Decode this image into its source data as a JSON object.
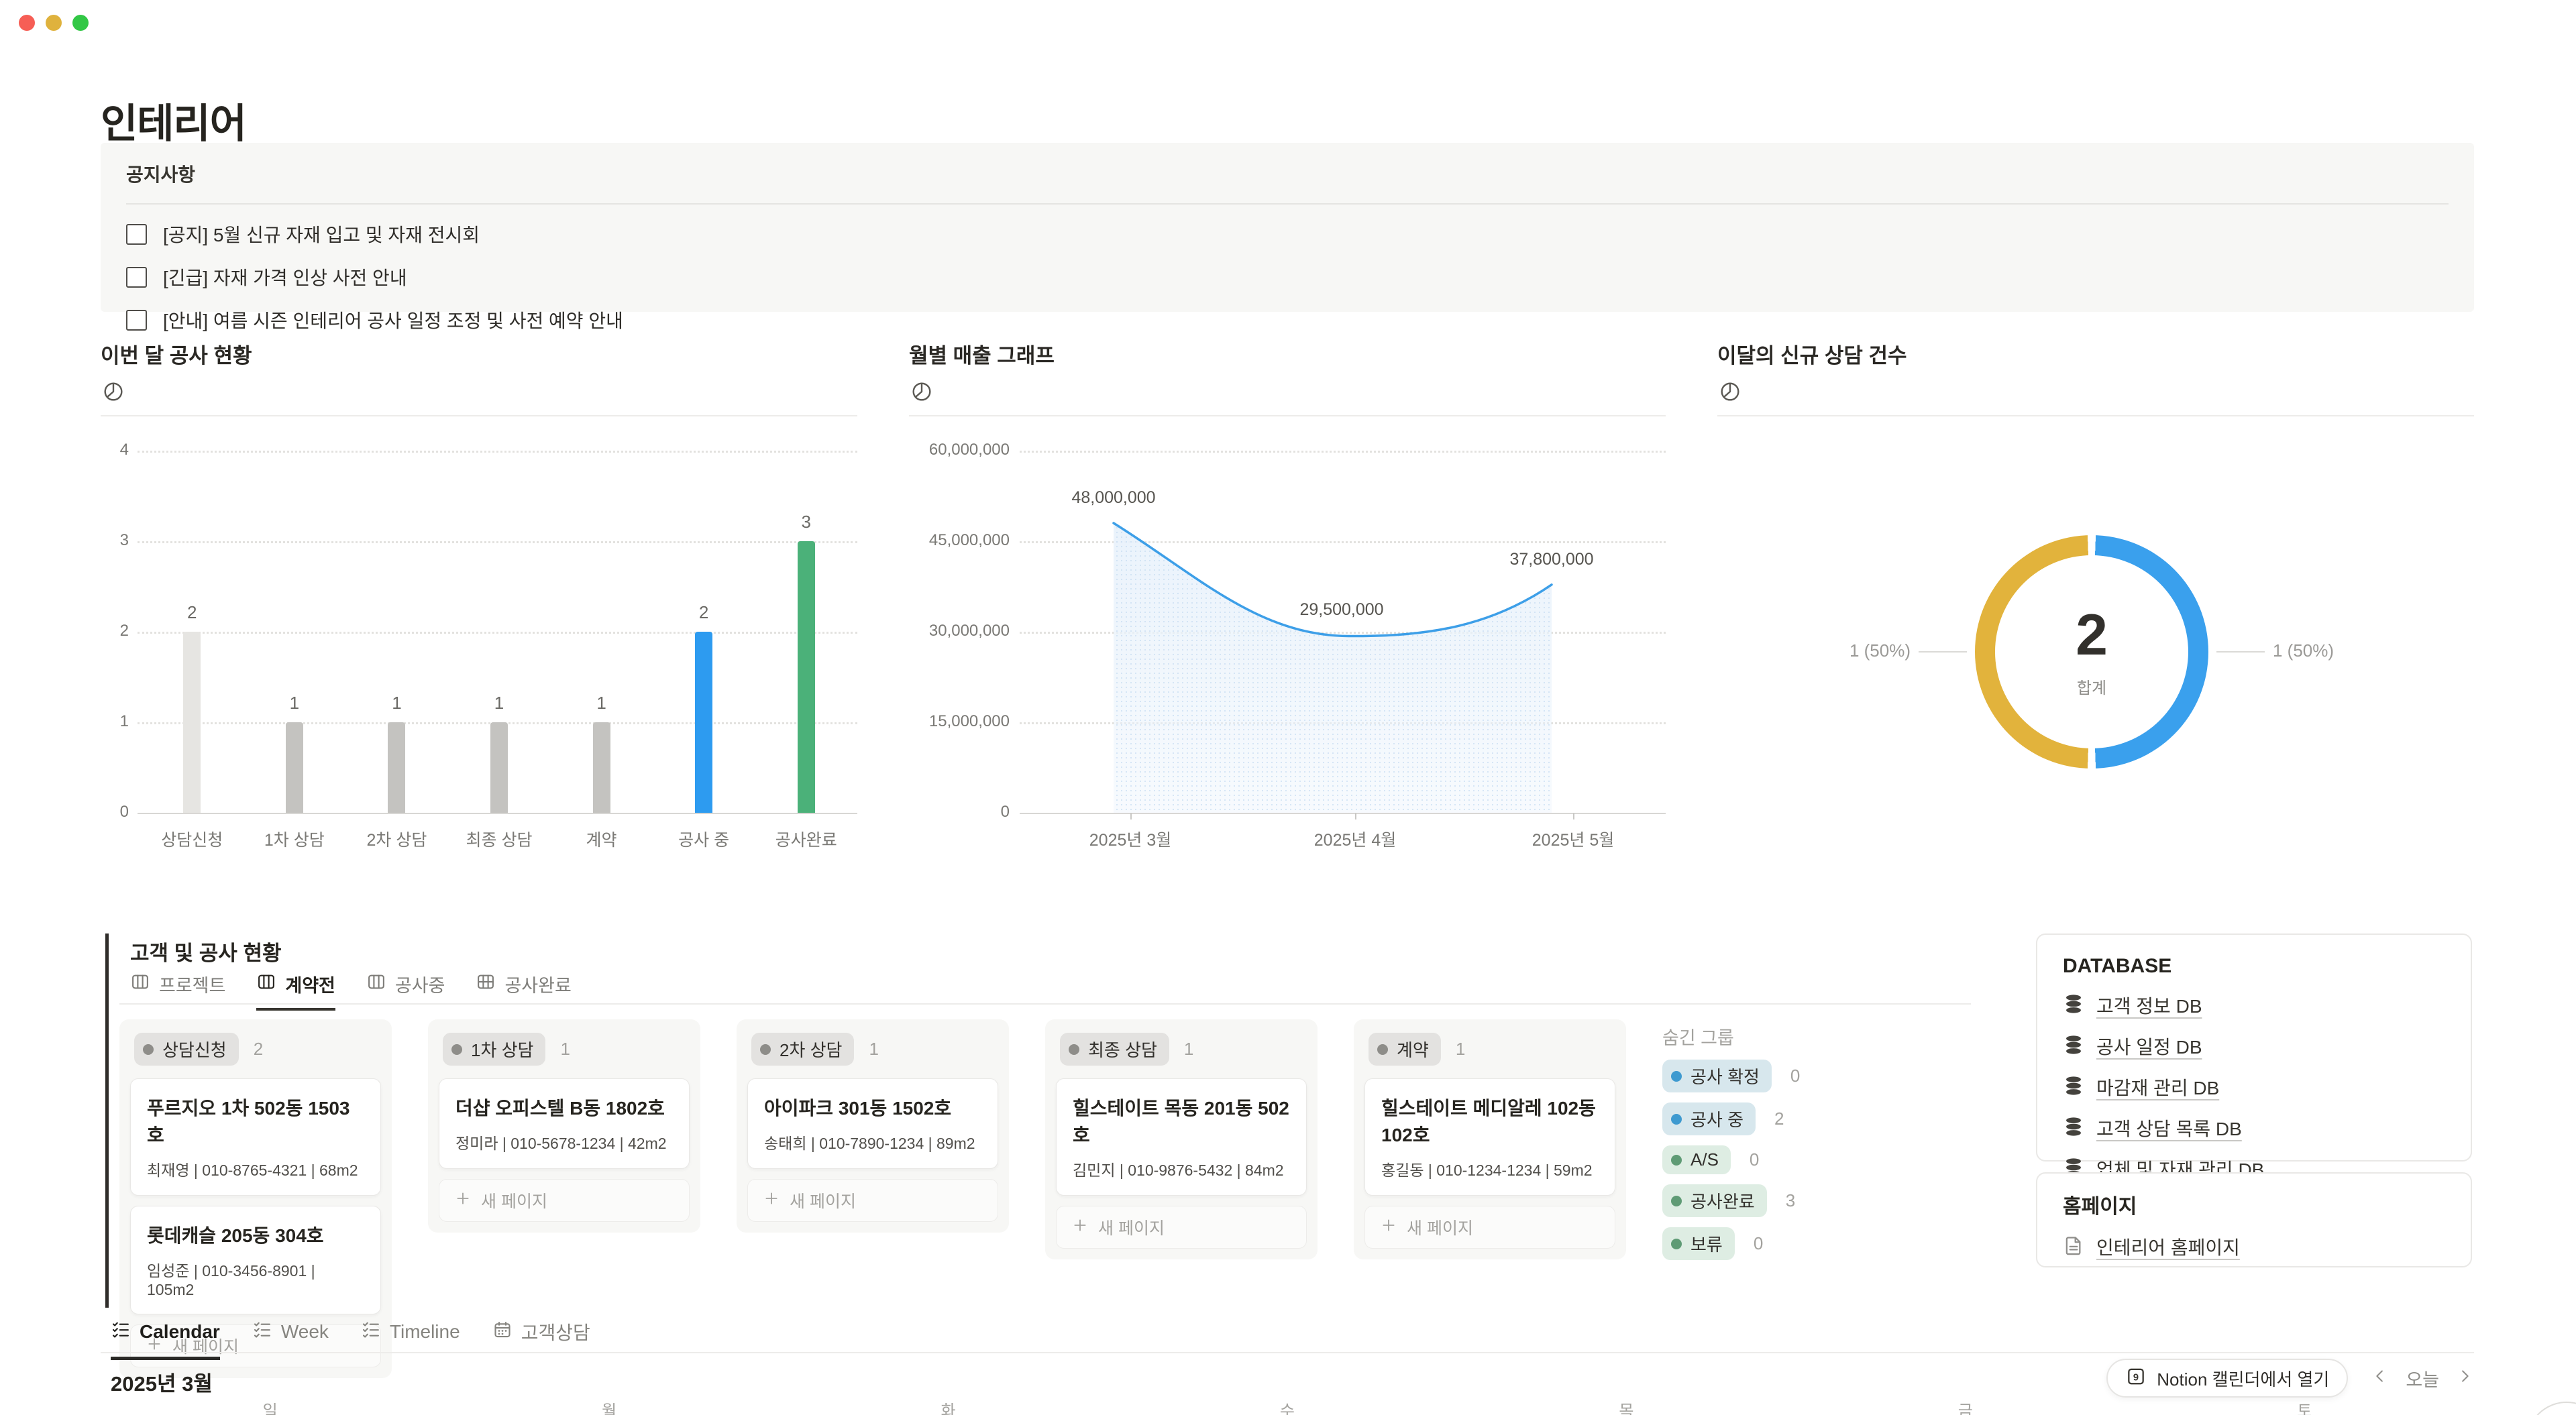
{
  "window": {
    "title": "인테리어",
    "traffic_lights": [
      "close",
      "minimize",
      "zoom"
    ],
    "traffic_colors": {
      "close": "#F65E55",
      "minimize": "#DFB23D",
      "zoom": "#32C745"
    }
  },
  "notice": {
    "title": "공지사항",
    "items": [
      {
        "checked": false,
        "label": "[공지] 5월 신규 자재 입고 및 자재 전시회"
      },
      {
        "checked": false,
        "label": "[긴급] 자재 가격 인상 사전 안내"
      },
      {
        "checked": false,
        "label": "[안내] 여름 시즌 인테리어 공사 일정 조정 및 사전 예약 안내"
      }
    ]
  },
  "chart_data": [
    {
      "type": "bar",
      "title": "이번 달 공사 현황",
      "categories": [
        "상담신청",
        "1차 상담",
        "2차 상담",
        "최종 상담",
        "계약",
        "공사 중",
        "공사완료"
      ],
      "values": [
        2,
        1,
        1,
        1,
        1,
        2,
        3
      ],
      "bar_colors": [
        "#E6E5E2",
        "#C4C3C0",
        "#C4C3C0",
        "#C4C3C0",
        "#C4C3C0",
        "#2D9BF0",
        "#4BB179"
      ],
      "ylim": [
        0,
        4
      ],
      "yticks": [
        0,
        1,
        2,
        3,
        4
      ],
      "grid": "dotted-horizontal",
      "legend": "none"
    },
    {
      "type": "line",
      "title": "월별 매출 그래프",
      "x": [
        "2025년 3월",
        "2025년 4월",
        "2025년 5월"
      ],
      "values": [
        48000000,
        29500000,
        37800000
      ],
      "value_labels": [
        "48,000,000",
        "29,500,000",
        "37,800,000"
      ],
      "ylim": [
        0,
        60000000
      ],
      "yticks": [
        "0",
        "15,000,000",
        "30,000,000",
        "45,000,000",
        "60,000,000"
      ],
      "ytick_values": [
        0,
        15000000,
        30000000,
        45000000,
        60000000
      ],
      "line_color": "#3D9FE8",
      "area_fill": "#E9F2FB",
      "area_dot_color": "#C3DAF1",
      "grid": "dotted-horizontal",
      "legend": "none"
    },
    {
      "type": "donut",
      "title": "이달의 신규 상담 건수",
      "center_value": "2",
      "center_label": "합계",
      "slices": [
        {
          "label": "1 (50%)",
          "value": 1,
          "percent": 50,
          "color": "#3AA0ED",
          "side": "right"
        },
        {
          "label": "1 (50%)",
          "value": 1,
          "percent": 50,
          "color": "#E2B33C",
          "side": "left"
        }
      ],
      "legend": "callout-lines"
    }
  ],
  "kanban": {
    "section_title": "고객 및 공사 현황",
    "tabs": [
      {
        "label": "프로젝트",
        "icon": "board-icon",
        "active": false
      },
      {
        "label": "계약전",
        "icon": "board-icon",
        "active": true
      },
      {
        "label": "공사중",
        "icon": "board-icon",
        "active": false
      },
      {
        "label": "공사완료",
        "icon": "table-icon",
        "active": false
      }
    ],
    "new_page_label": "새 페이지",
    "columns": [
      {
        "name": "상담신청",
        "count": "2",
        "cards": [
          {
            "title": "푸르지오 1차 502동 1503호",
            "meta": "최재영 | 010-8765-4321 | 68m2"
          },
          {
            "title": "롯데캐슬 205동 304호",
            "meta": "임성준 | 010-3456-8901 | 105m2"
          }
        ]
      },
      {
        "name": "1차 상담",
        "count": "1",
        "cards": [
          {
            "title": "더샵 오피스텔 B동 1802호",
            "meta": "정미라 | 010-5678-1234 | 42m2"
          }
        ]
      },
      {
        "name": "2차 상담",
        "count": "1",
        "cards": [
          {
            "title": "아이파크 301동 1502호",
            "meta": "송태희 | 010-7890-1234 | 89m2"
          }
        ]
      },
      {
        "name": "최종 상담",
        "count": "1",
        "cards": [
          {
            "title": "힐스테이트 목동 201동 502호",
            "meta": "김민지 | 010-9876-5432 | 84m2"
          }
        ]
      },
      {
        "name": "계약",
        "count": "1",
        "cards": [
          {
            "title": "힐스테이트 메디알레 102동 102호",
            "meta": "홍길동 | 010-1234-1234 | 59m2"
          }
        ]
      }
    ],
    "hidden_groups": {
      "title": "숨긴 그룹",
      "items": [
        {
          "label": "공사 확정",
          "count": "0",
          "pill_bg": "#D7E7ED",
          "dot_color": "#3E9AD0"
        },
        {
          "label": "공사 중",
          "count": "2",
          "pill_bg": "#D7E7ED",
          "dot_color": "#3E9AD0"
        },
        {
          "label": "A/S",
          "count": "0",
          "pill_bg": "#DEEDE3",
          "dot_color": "#5F9B75"
        },
        {
          "label": "공사완료",
          "count": "3",
          "pill_bg": "#DEEDE3",
          "dot_color": "#5F9B75"
        },
        {
          "label": "보류",
          "count": "0",
          "pill_bg": "#DEEDE3",
          "dot_color": "#5F9B75"
        }
      ]
    }
  },
  "database_panel": {
    "title": "DATABASE",
    "items": [
      "고객 정보 DB",
      "공사 일정 DB",
      "마감재 관리 DB",
      "고객 상담 목록 DB",
      "업체 및 자재 관리 DB"
    ]
  },
  "homepage_panel": {
    "title": "홈페이지",
    "items": [
      "인테리어 홈페이지"
    ]
  },
  "calendar": {
    "tabs": [
      {
        "label": "Calendar",
        "icon": "checklist-icon",
        "active": true
      },
      {
        "label": "Week",
        "icon": "checklist-icon",
        "active": false
      },
      {
        "label": "Timeline",
        "icon": "checklist-icon",
        "active": false
      },
      {
        "label": "고객상담",
        "icon": "calendar-icon",
        "active": false
      }
    ],
    "month": "2025년 3월",
    "open_button": "Notion 캘린더에서 열기",
    "today_label": "오늘",
    "weekdays": [
      "일",
      "월",
      "화",
      "수",
      "목",
      "금",
      "토"
    ]
  }
}
